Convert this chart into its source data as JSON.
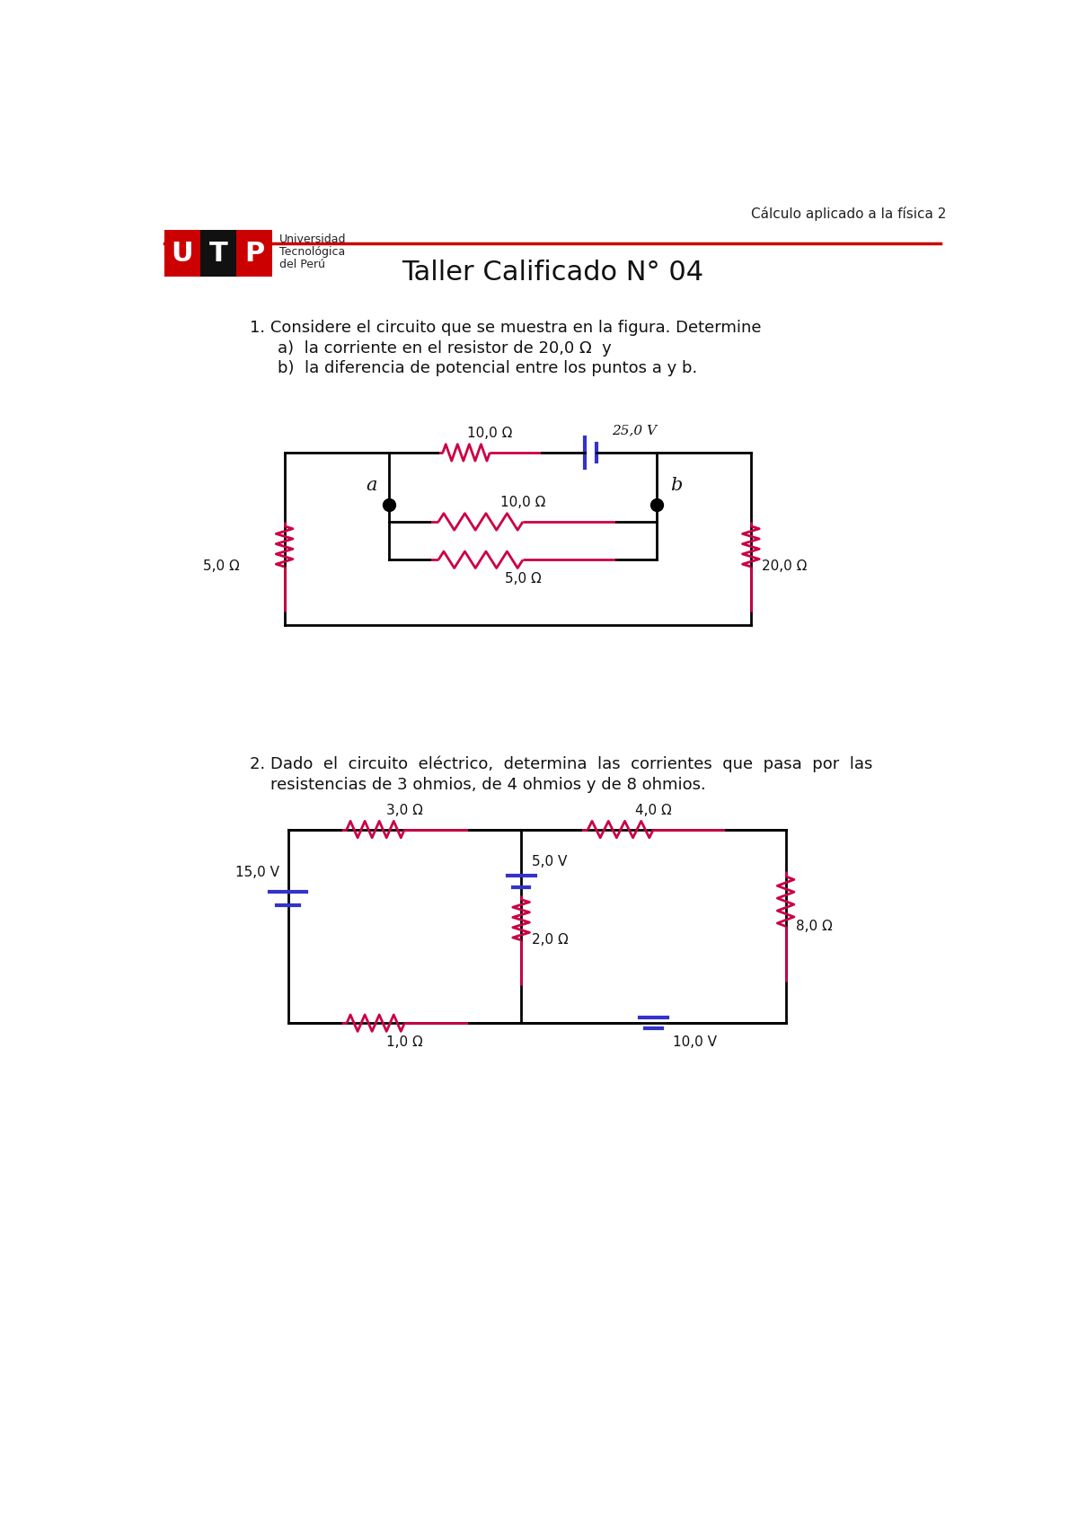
{
  "title": "Taller Calificado N° 04",
  "header_right": "Cálculo aplicado a la física 2",
  "utp_text": [
    "Universidad",
    "Tecnológica",
    "del Perú"
  ],
  "q1_text": "1. Considere el circuito que se muestra en la figura. Determine",
  "q1a_text": "a)  la corriente en el resistor de 20,0 Ω  y",
  "q1b_text": "b)  la diferencia de potencial entre los puntos a y b.",
  "q2_text": "2. Dado  el  circuito  eléctrico,  determina  las  corrientes  que  pasa  por  las",
  "q2b_text": "resistencias de 3 ohmios, de 4 ohmios y de 8 ohmios.",
  "resistor_color": "#cc0044",
  "wire_color": "#000000",
  "battery_color": "#3333cc",
  "node_color": "#000000",
  "bg_color": "#ffffff"
}
